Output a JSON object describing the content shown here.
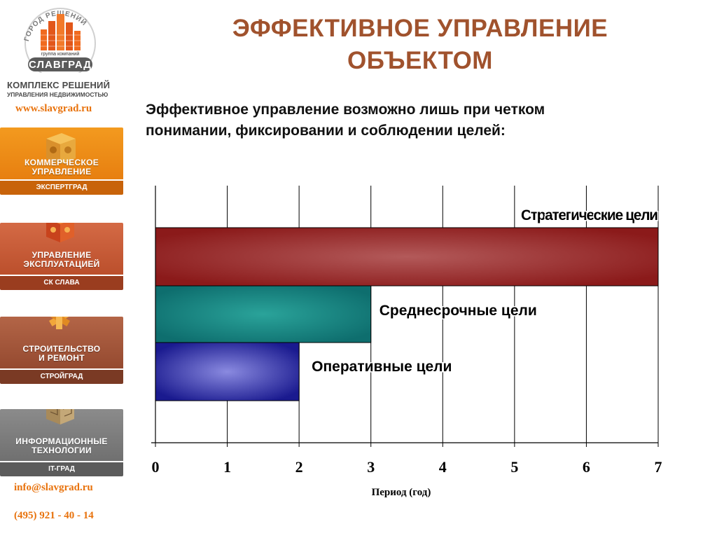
{
  "sidebar": {
    "logo": {
      "arc_text": "ГОРОД РЕШЕНИЙ",
      "group": "группа компаний",
      "name": "СЛАВГРАД"
    },
    "company_title": "КОМПЛЕКС РЕШЕНИЙ",
    "company_subtitle": "УПРАВЛЕНИЯ НЕДВИЖИМОСТЬЮ",
    "url": "www.slavgrad.ru",
    "nav": [
      {
        "label_line1": "КОММЕРЧЕСКОЕ",
        "label_line2": "УПРАВЛЕНИЕ",
        "strip": "ЭКСПЕРТГРАД",
        "icon": "wooden-cube-icon"
      },
      {
        "label_line1": "УПРАВЛЕНИЕ",
        "label_line2": "ЭКСПЛУАТАЦИЕЙ",
        "strip": "СК СЛАВА",
        "icon": "puzzle-cube-icon"
      },
      {
        "label_line1": "СТРОИТЕЛЬСТВО",
        "label_line2": "И РЕМОНТ",
        "strip": "СТРОЙГРАД",
        "icon": "wooden-knot-icon"
      },
      {
        "label_line1": "ИНФОРМАЦИОННЫЕ",
        "label_line2": "ТЕХНОЛОГИИ",
        "strip": "IT-ГРАД",
        "icon": "maze-cube-icon"
      }
    ],
    "email": "info@slavgrad.ru",
    "phone": "(495) 921 - 40 - 14"
  },
  "main": {
    "title_line1": "ЭФФЕКТИВНОЕ УПРАВЛЕНИЕ",
    "title_line2": "ОБЪЕКТОМ",
    "subtitle_line1": "Эффективное управление возможно лишь при четком",
    "subtitle_line2": "понимании, фиксировании и соблюдении целей:"
  },
  "chart_data": {
    "type": "bar",
    "orientation": "horizontal",
    "categories": [
      "Стратегические цели",
      "Среднесрочные цели",
      "Оперативные цели"
    ],
    "values": [
      7,
      3,
      2
    ],
    "colors": [
      "#8b1a1a",
      "#0e6e6e",
      "#1a1a8f"
    ],
    "xlabel": "Период (год)",
    "ylabel": "",
    "xlim": [
      0,
      7
    ],
    "xticks": [
      0,
      1,
      2,
      3,
      4,
      5,
      6,
      7
    ],
    "grid": true,
    "legend": "none"
  },
  "colors": {
    "accent_orange": "#e8720c",
    "title_brown": "#a0522d"
  }
}
